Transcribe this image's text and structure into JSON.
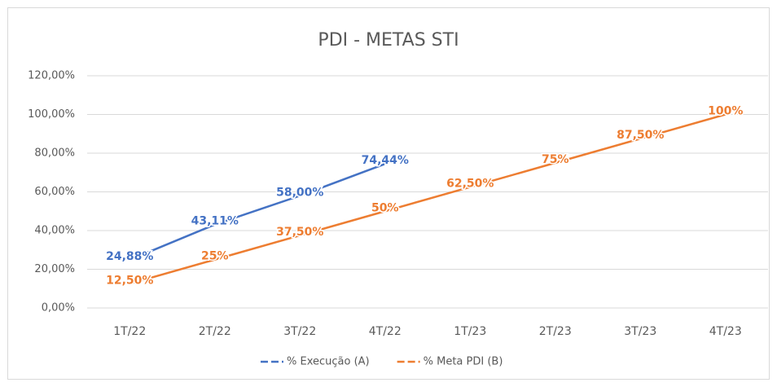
{
  "chart_data": {
    "type": "line",
    "title": "PDI - METAS STI",
    "categories": [
      "1T/22",
      "2T/22",
      "3T/22",
      "4T/22",
      "1T/23",
      "2T/23",
      "3T/23",
      "4T/23"
    ],
    "series": [
      {
        "name": "% Execução (A)",
        "color": "#4472c4",
        "values": [
          24.88,
          43.11,
          58.0,
          74.44,
          null,
          null,
          null,
          null
        ],
        "value_labels": [
          "24,88%",
          "43,11%",
          "58,00%",
          "74,44%",
          null,
          null,
          null,
          null
        ]
      },
      {
        "name": "% Meta PDI (B)",
        "color": "#ed7d31",
        "values": [
          12.5,
          25,
          37.5,
          50,
          62.5,
          75,
          87.5,
          100
        ],
        "value_labels": [
          "12,50%",
          "25%",
          "37,50%",
          "50%",
          "62,50%",
          "75%",
          "87,50%",
          "100%"
        ]
      }
    ],
    "ylim": [
      0,
      120
    ],
    "yticks": [
      {
        "value": 0,
        "label": "0,00%"
      },
      {
        "value": 20,
        "label": "20,00%"
      },
      {
        "value": 40,
        "label": "40,00%"
      },
      {
        "value": 60,
        "label": "60,00%"
      },
      {
        "value": 80,
        "label": "80,00%"
      },
      {
        "value": 100,
        "label": "100,00%"
      },
      {
        "value": 120,
        "label": "120,00%"
      }
    ],
    "grid": true,
    "legend": "bottom"
  }
}
